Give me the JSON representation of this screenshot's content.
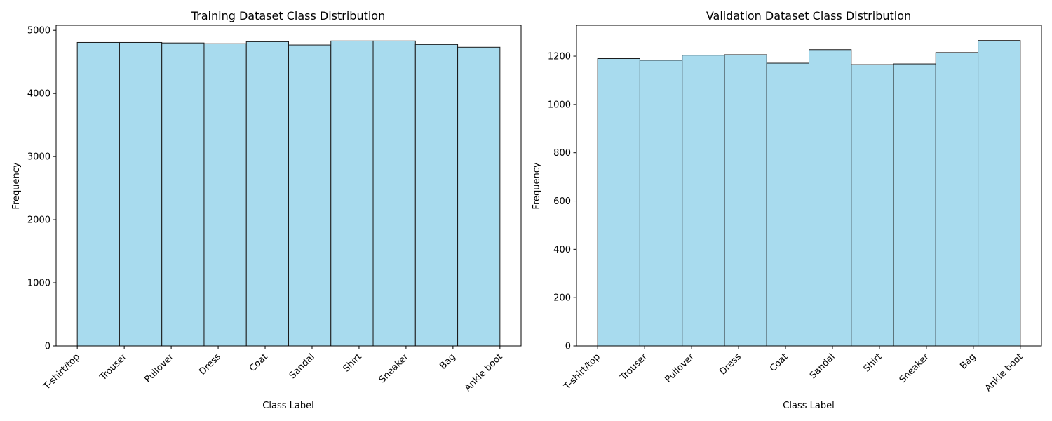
{
  "chart_data": [
    {
      "type": "bar",
      "title": "Training Dataset Class Distribution",
      "xlabel": "Class Label",
      "ylabel": "Frequency",
      "categories": [
        "T-shirt/top",
        "Trouser",
        "Pullover",
        "Dress",
        "Coat",
        "Sandal",
        "Shirt",
        "Sneaker",
        "Bag",
        "Ankle boot"
      ],
      "values": [
        4808,
        4808,
        4800,
        4788,
        4820,
        4768,
        4832,
        4832,
        4776,
        4732
      ],
      "ylim": [
        0,
        5080
      ],
      "yticks": [
        0,
        1000,
        2000,
        3000,
        4000,
        5000
      ],
      "grid": false,
      "bar_color": "#a8dbee",
      "edge_color": "#1a1a1a"
    },
    {
      "type": "bar",
      "title": "Validation Dataset Class Distribution",
      "xlabel": "Class Label",
      "ylabel": "Frequency",
      "categories": [
        "T-shirt/top",
        "Trouser",
        "Pullover",
        "Dress",
        "Coat",
        "Sandal",
        "Shirt",
        "Sneaker",
        "Bag",
        "Ankle boot"
      ],
      "values": [
        1190,
        1183,
        1204,
        1206,
        1171,
        1227,
        1165,
        1168,
        1215,
        1265
      ],
      "ylim": [
        0,
        1328
      ],
      "yticks": [
        0,
        200,
        400,
        600,
        800,
        1000,
        1200
      ],
      "grid": false,
      "bar_color": "#a8dbee",
      "edge_color": "#1a1a1a"
    }
  ]
}
